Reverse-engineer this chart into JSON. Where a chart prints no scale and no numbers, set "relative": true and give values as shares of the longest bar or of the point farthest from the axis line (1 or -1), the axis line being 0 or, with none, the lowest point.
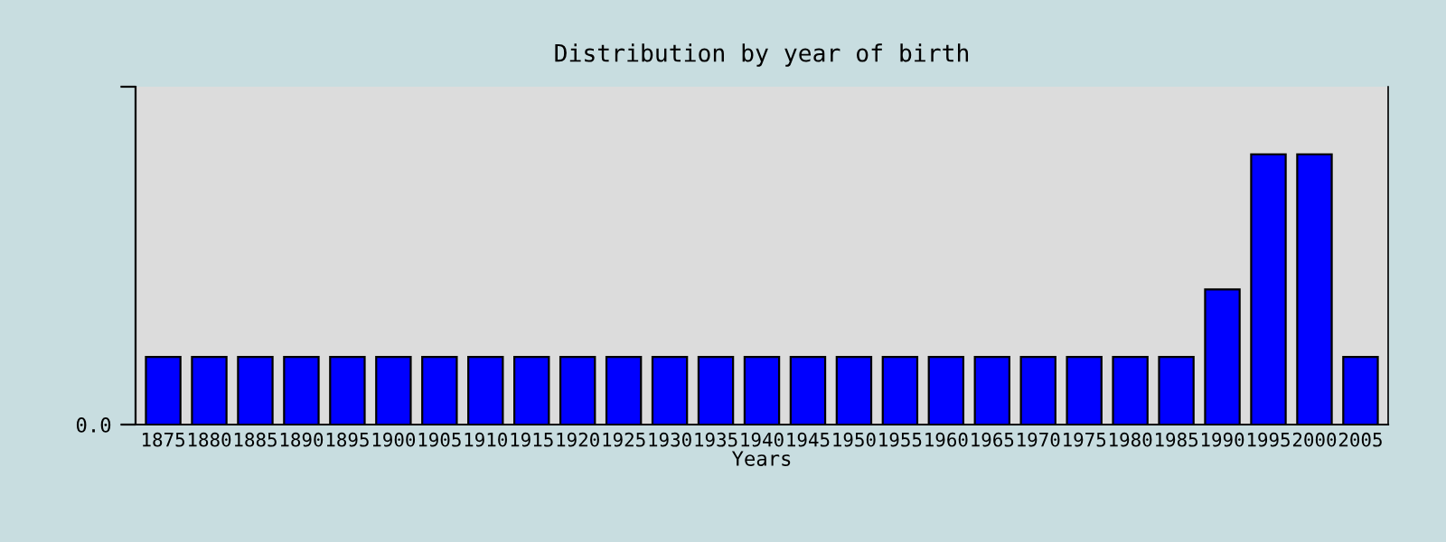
{
  "chart_data": {
    "type": "bar",
    "title": "Distribution by year of birth",
    "xlabel": "Years",
    "categories": [
      "1875",
      "1880",
      "1885",
      "1890",
      "1895",
      "1900",
      "1905",
      "1910",
      "1915",
      "1920",
      "1925",
      "1930",
      "1935",
      "1940",
      "1945",
      "1950",
      "1955",
      "1960",
      "1965",
      "1970",
      "1975",
      "1980",
      "1985",
      "1990",
      "1995",
      "2000",
      "2005"
    ],
    "values": [
      0.25,
      0.25,
      0.25,
      0.25,
      0.25,
      0.25,
      0.25,
      0.25,
      0.25,
      0.25,
      0.25,
      0.25,
      0.25,
      0.25,
      0.25,
      0.25,
      0.25,
      0.25,
      0.25,
      0.25,
      0.25,
      0.25,
      0.25,
      0.5,
      1,
      1,
      0.25
    ],
    "color": "#0000ff",
    "relative": true,
    "grid": false,
    "legend": false,
    "annotations": [
      "0.0"
    ]
  }
}
